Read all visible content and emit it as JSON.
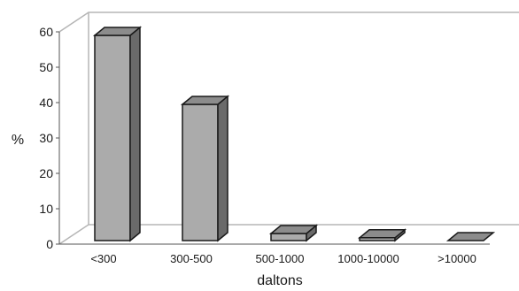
{
  "chart_data": {
    "type": "bar",
    "categories": [
      "<300",
      "300-500",
      "500-1000",
      "1000-10000",
      ">10000"
    ],
    "values": [
      58,
      38.5,
      2,
      0.8,
      0
    ],
    "xlabel": "daltons",
    "ylabel": "%",
    "ylim": [
      0,
      60
    ],
    "yticks": [
      0,
      10,
      20,
      30,
      40,
      50,
      60
    ],
    "grid": false,
    "legend": "none",
    "style": "3d-columns",
    "colors": {
      "bar_front": "#ababab",
      "bar_side": "#6a6a6a",
      "bar_top": "#8c8c8c",
      "bar_outline": "#1a1a1a",
      "wall_lines": "#b5b5b5",
      "axis_lines": "#555555"
    }
  }
}
